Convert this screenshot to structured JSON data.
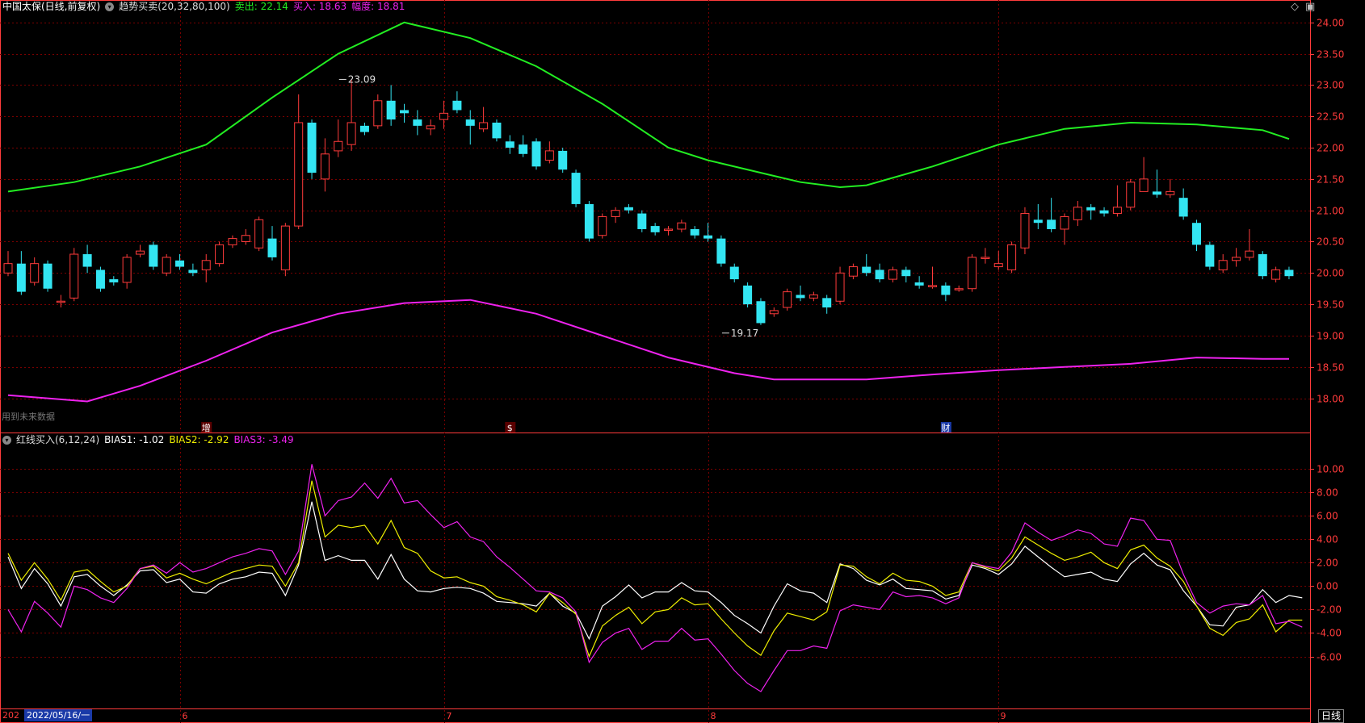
{
  "header": {
    "stock": "中国太保(日线,前复权)",
    "indicator": "趋势买卖(20,32,80,100)",
    "sell_label": "卖出: 22.14",
    "buy_label": "买入: 18.63",
    "range_label": "幅度: 18.81"
  },
  "sub_header": {
    "indicator": "红线买入(6,12,24)",
    "bias1": "BIAS1: -1.02",
    "bias2": "BIAS2: -2.92",
    "bias3": "BIAS3: -3.49"
  },
  "no_data_label": "用到未来数据",
  "period_label": "日线",
  "date_box": "2022/05/16/一",
  "date_prefix": "202",
  "colors": {
    "up": "#ff3b3b",
    "down": "#33e5f2",
    "sell": "#22ee22",
    "buy": "#ee22ee",
    "bias1": "#ffffff",
    "bias2": "#eeee00",
    "bias3": "#ee22ee",
    "grid": "#7a0000",
    "axis": "#ff3b3b"
  },
  "chart_data": [
    {
      "type": "candlestick",
      "ylim": [
        17.75,
        24.1
      ],
      "yticks": [
        "24.00",
        "23.50",
        "23.00",
        "22.50",
        "22.00",
        "21.50",
        "21.00",
        "20.50",
        "20.00",
        "19.50",
        "19.00",
        "18.50",
        "18.00"
      ],
      "ytick_values": [
        24.0,
        23.5,
        23.0,
        22.5,
        22.0,
        21.5,
        21.0,
        20.5,
        20.0,
        19.5,
        19.0,
        18.5,
        18.0
      ],
      "month_ticks": [
        {
          "label": "6",
          "index": 13
        },
        {
          "label": "7",
          "index": 33
        },
        {
          "label": "8",
          "index": 53
        },
        {
          "label": "9",
          "index": 75
        }
      ],
      "event_markers": [
        {
          "label": "增",
          "index": 15
        },
        {
          "label": "$",
          "index": 38
        },
        {
          "label": "财",
          "index": 71
        }
      ],
      "annotations": [
        {
          "label": "23.09",
          "index": 25,
          "value": 23.09
        },
        {
          "label": "19.17",
          "index": 54,
          "value": 19.17
        }
      ],
      "candles": [
        [
          20.0,
          20.15,
          20.35,
          19.95
        ],
        [
          20.15,
          19.7,
          20.35,
          19.65
        ],
        [
          19.85,
          20.15,
          20.25,
          19.8
        ],
        [
          20.15,
          19.75,
          20.2,
          19.7
        ],
        [
          19.55,
          19.55,
          19.65,
          19.45
        ],
        [
          19.6,
          20.3,
          20.4,
          19.55
        ],
        [
          20.3,
          20.1,
          20.45,
          20.0
        ],
        [
          20.05,
          19.75,
          20.1,
          19.7
        ],
        [
          19.9,
          19.85,
          19.95,
          19.8
        ],
        [
          19.85,
          20.25,
          20.3,
          19.75
        ],
        [
          20.3,
          20.35,
          20.45,
          20.25
        ],
        [
          20.45,
          20.1,
          20.5,
          20.05
        ],
        [
          20.0,
          20.25,
          20.3,
          19.95
        ],
        [
          20.2,
          20.1,
          20.3,
          20.05
        ],
        [
          20.05,
          20.0,
          20.15,
          19.95
        ],
        [
          20.05,
          20.2,
          20.3,
          19.85
        ],
        [
          20.15,
          20.45,
          20.5,
          20.1
        ],
        [
          20.45,
          20.55,
          20.6,
          20.4
        ],
        [
          20.5,
          20.6,
          20.7,
          20.45
        ],
        [
          20.4,
          20.85,
          20.9,
          20.35
        ],
        [
          20.55,
          20.25,
          20.75,
          20.2
        ],
        [
          20.05,
          20.75,
          20.8,
          19.95
        ],
        [
          20.75,
          22.4,
          22.85,
          20.7
        ],
        [
          22.4,
          21.6,
          22.45,
          21.5
        ],
        [
          21.5,
          21.9,
          22.15,
          21.3
        ],
        [
          21.95,
          22.1,
          22.45,
          21.85
        ],
        [
          22.05,
          22.4,
          23.09,
          21.95
        ],
        [
          22.35,
          22.25,
          22.4,
          22.2
        ],
        [
          22.35,
          22.75,
          22.85,
          22.3
        ],
        [
          22.75,
          22.45,
          23.0,
          22.35
        ],
        [
          22.6,
          22.55,
          22.7,
          22.4
        ],
        [
          22.45,
          22.35,
          22.6,
          22.2
        ],
        [
          22.3,
          22.35,
          22.45,
          22.2
        ],
        [
          22.45,
          22.55,
          22.75,
          22.3
        ],
        [
          22.75,
          22.6,
          22.9,
          22.55
        ],
        [
          22.45,
          22.35,
          22.6,
          22.05
        ],
        [
          22.3,
          22.4,
          22.65,
          22.25
        ],
        [
          22.4,
          22.15,
          22.45,
          22.1
        ],
        [
          22.1,
          22.0,
          22.2,
          21.9
        ],
        [
          22.05,
          21.9,
          22.2,
          21.85
        ],
        [
          22.1,
          21.7,
          22.15,
          21.65
        ],
        [
          21.8,
          21.95,
          22.1,
          21.75
        ],
        [
          21.95,
          21.65,
          22.0,
          21.6
        ],
        [
          21.6,
          21.1,
          21.65,
          21.05
        ],
        [
          21.1,
          20.55,
          21.15,
          20.5
        ],
        [
          20.6,
          20.9,
          20.95,
          20.55
        ],
        [
          20.9,
          21.0,
          21.05,
          20.8
        ],
        [
          21.05,
          21.0,
          21.1,
          20.95
        ],
        [
          20.95,
          20.7,
          21.0,
          20.65
        ],
        [
          20.75,
          20.65,
          20.8,
          20.6
        ],
        [
          20.7,
          20.7,
          20.75,
          20.6
        ],
        [
          20.7,
          20.8,
          20.85,
          20.65
        ],
        [
          20.7,
          20.6,
          20.75,
          20.55
        ],
        [
          20.6,
          20.55,
          20.8,
          20.5
        ],
        [
          20.55,
          20.15,
          20.6,
          20.1
        ],
        [
          20.1,
          19.9,
          20.15,
          19.85
        ],
        [
          19.8,
          19.5,
          19.85,
          19.45
        ],
        [
          19.55,
          19.2,
          19.6,
          19.17
        ],
        [
          19.35,
          19.4,
          19.45,
          19.3
        ],
        [
          19.45,
          19.7,
          19.75,
          19.4
        ],
        [
          19.65,
          19.6,
          19.8,
          19.55
        ],
        [
          19.6,
          19.65,
          19.7,
          19.55
        ],
        [
          19.6,
          19.45,
          19.65,
          19.35
        ],
        [
          19.55,
          20.0,
          20.1,
          19.5
        ],
        [
          19.95,
          20.1,
          20.15,
          19.9
        ],
        [
          20.1,
          20.0,
          20.3,
          19.95
        ],
        [
          20.05,
          19.9,
          20.15,
          19.85
        ],
        [
          19.9,
          20.05,
          20.1,
          19.85
        ],
        [
          20.05,
          19.95,
          20.1,
          19.85
        ],
        [
          19.85,
          19.8,
          19.95,
          19.75
        ],
        [
          19.8,
          19.8,
          20.1,
          19.75
        ],
        [
          19.8,
          19.65,
          19.85,
          19.55
        ],
        [
          19.75,
          19.75,
          19.8,
          19.7
        ],
        [
          19.75,
          20.25,
          20.3,
          19.7
        ],
        [
          20.25,
          20.25,
          20.4,
          20.15
        ],
        [
          20.1,
          20.15,
          20.35,
          20.05
        ],
        [
          20.05,
          20.45,
          20.5,
          20.0
        ],
        [
          20.4,
          20.95,
          21.05,
          20.3
        ],
        [
          20.85,
          20.8,
          21.1,
          20.7
        ],
        [
          20.85,
          20.7,
          21.2,
          20.65
        ],
        [
          20.7,
          20.9,
          20.95,
          20.45
        ],
        [
          20.85,
          21.05,
          21.15,
          20.75
        ],
        [
          21.05,
          21.0,
          21.1,
          20.85
        ],
        [
          21.0,
          20.95,
          21.05,
          20.9
        ],
        [
          20.95,
          21.05,
          21.4,
          20.9
        ],
        [
          21.05,
          21.45,
          21.5,
          21.0
        ],
        [
          21.3,
          21.5,
          21.85,
          21.3
        ],
        [
          21.3,
          21.25,
          21.65,
          21.2
        ],
        [
          21.25,
          21.3,
          21.5,
          21.2
        ],
        [
          21.2,
          20.9,
          21.35,
          20.85
        ],
        [
          20.8,
          20.45,
          20.85,
          20.35
        ],
        [
          20.45,
          20.1,
          20.5,
          20.05
        ],
        [
          20.05,
          20.2,
          20.3,
          20.0
        ],
        [
          20.2,
          20.25,
          20.4,
          20.1
        ],
        [
          20.25,
          20.35,
          20.7,
          20.2
        ],
        [
          20.3,
          19.95,
          20.35,
          19.9
        ],
        [
          19.9,
          20.05,
          20.1,
          19.85
        ],
        [
          20.05,
          19.95,
          20.1,
          19.9
        ]
      ],
      "sell_line": [
        [
          0,
          21.3
        ],
        [
          5,
          21.45
        ],
        [
          10,
          21.7
        ],
        [
          15,
          22.05
        ],
        [
          20,
          22.8
        ],
        [
          25,
          23.5
        ],
        [
          30,
          24.0
        ],
        [
          35,
          23.75
        ],
        [
          40,
          23.3
        ],
        [
          45,
          22.7
        ],
        [
          50,
          22.0
        ],
        [
          53,
          21.8
        ],
        [
          58,
          21.55
        ],
        [
          60,
          21.45
        ],
        [
          63,
          21.37
        ],
        [
          65,
          21.4
        ],
        [
          70,
          21.7
        ],
        [
          75,
          22.05
        ],
        [
          80,
          22.3
        ],
        [
          85,
          22.4
        ],
        [
          90,
          22.37
        ],
        [
          95,
          22.28
        ],
        [
          97,
          22.14
        ]
      ],
      "buy_line": [
        [
          0,
          18.05
        ],
        [
          3,
          18.0
        ],
        [
          6,
          17.95
        ],
        [
          10,
          18.2
        ],
        [
          15,
          18.6
        ],
        [
          20,
          19.05
        ],
        [
          25,
          19.35
        ],
        [
          30,
          19.52
        ],
        [
          35,
          19.57
        ],
        [
          40,
          19.35
        ],
        [
          45,
          19.0
        ],
        [
          50,
          18.65
        ],
        [
          55,
          18.4
        ],
        [
          58,
          18.3
        ],
        [
          65,
          18.3
        ],
        [
          70,
          18.38
        ],
        [
          75,
          18.45
        ],
        [
          80,
          18.5
        ],
        [
          85,
          18.55
        ],
        [
          90,
          18.65
        ],
        [
          95,
          18.63
        ],
        [
          97,
          18.63
        ]
      ]
    },
    {
      "type": "line",
      "ylim": [
        -9.2,
        11.8
      ],
      "yticks": [
        "10.00",
        "8.00",
        "6.00",
        "4.00",
        "2.00",
        "0.00",
        "-2.00",
        "-4.00",
        "-6.00"
      ],
      "ytick_values": [
        10,
        8,
        6,
        4,
        2,
        0,
        -2,
        -4,
        -6
      ],
      "series": [
        {
          "name": "BIAS1",
          "values": [
            2.5,
            -0.2,
            1.5,
            0.2,
            -1.7,
            0.8,
            1.0,
            0.0,
            -0.8,
            0.1,
            1.3,
            1.4,
            0.3,
            0.6,
            -0.5,
            -0.6,
            0.2,
            0.6,
            0.8,
            1.2,
            1.1,
            -0.8,
            1.8,
            7.2,
            2.2,
            2.6,
            2.2,
            2.2,
            0.6,
            2.7,
            0.6,
            -0.4,
            -0.5,
            -0.2,
            -0.1,
            -0.2,
            -0.6,
            -1.3,
            -1.4,
            -1.5,
            -1.7,
            -0.6,
            -1.7,
            -2.3,
            -4.5,
            -1.7,
            -0.9,
            0.1,
            -1.0,
            -0.5,
            -0.5,
            0.3,
            -0.4,
            -0.5,
            -1.4,
            -2.5,
            -3.2,
            -4.0,
            -1.7,
            0.2,
            -0.4,
            -0.6,
            -1.4,
            1.9,
            1.5,
            0.5,
            0.1,
            0.6,
            -0.2,
            -0.3,
            -0.4,
            -1.1,
            -0.8,
            1.8,
            1.5,
            1.0,
            1.9,
            3.4,
            2.5,
            1.6,
            0.8,
            1.0,
            1.2,
            0.6,
            0.4,
            1.9,
            2.8,
            1.8,
            1.4,
            -0.4,
            -1.7,
            -3.3,
            -3.4,
            -1.8,
            -1.6,
            -0.3,
            -1.4,
            -0.8,
            -1.0
          ]
        },
        {
          "name": "BIAS2",
          "values": [
            2.8,
            0.5,
            2.0,
            0.6,
            -1.2,
            1.2,
            1.4,
            0.4,
            -0.5,
            0.0,
            1.5,
            1.7,
            0.7,
            1.1,
            0.6,
            0.2,
            0.7,
            1.2,
            1.5,
            1.8,
            1.7,
            0.0,
            2.0,
            9.0,
            4.2,
            5.2,
            5.0,
            5.2,
            3.6,
            5.6,
            3.3,
            2.8,
            1.3,
            0.7,
            0.8,
            0.3,
            0.0,
            -0.9,
            -1.2,
            -1.6,
            -2.2,
            -0.6,
            -1.4,
            -2.4,
            -6.0,
            -3.4,
            -2.5,
            -1.8,
            -3.2,
            -2.2,
            -2.0,
            -1.0,
            -1.6,
            -1.5,
            -2.8,
            -4.0,
            -5.1,
            -5.9,
            -3.8,
            -2.3,
            -2.6,
            -2.9,
            -2.2,
            1.8,
            1.7,
            0.8,
            0.2,
            1.1,
            0.5,
            0.4,
            0.0,
            -0.8,
            -0.5,
            2.0,
            1.6,
            1.3,
            2.4,
            4.2,
            3.5,
            2.8,
            2.2,
            2.5,
            2.9,
            2.0,
            1.5,
            3.1,
            3.5,
            2.4,
            1.7,
            0.4,
            -1.7,
            -3.6,
            -4.2,
            -3.1,
            -2.8,
            -1.6,
            -3.9,
            -2.9,
            -2.9
          ]
        },
        {
          "name": "BIAS3",
          "values": [
            -2.0,
            -3.9,
            -1.3,
            -2.3,
            -3.5,
            0.0,
            -0.3,
            -1.0,
            -1.4,
            -0.2,
            1.5,
            1.8,
            1.1,
            2.0,
            1.2,
            1.5,
            2.0,
            2.5,
            2.8,
            3.2,
            3.0,
            1.0,
            3.0,
            10.4,
            6.0,
            7.3,
            7.6,
            8.8,
            7.5,
            9.2,
            7.1,
            7.3,
            6.1,
            5.0,
            5.5,
            4.2,
            3.8,
            2.5,
            1.6,
            0.6,
            -0.4,
            -0.5,
            -1.0,
            -2.2,
            -6.5,
            -4.8,
            -4.0,
            -3.6,
            -5.4,
            -4.7,
            -4.7,
            -3.6,
            -4.6,
            -4.5,
            -5.8,
            -7.2,
            -8.3,
            -9.0,
            -7.2,
            -5.5,
            -5.5,
            -5.1,
            -5.3,
            -2.1,
            -1.6,
            -1.8,
            -2.0,
            -0.5,
            -0.9,
            -0.8,
            -1.0,
            -1.5,
            -1.0,
            2.0,
            1.7,
            1.5,
            2.9,
            5.4,
            4.6,
            3.9,
            4.3,
            4.8,
            4.5,
            3.6,
            3.4,
            5.8,
            5.6,
            4.0,
            3.9,
            1.0,
            -1.4,
            -2.3,
            -1.7,
            -1.5,
            -1.6,
            -0.8,
            -3.2,
            -3.0,
            -3.5
          ]
        }
      ]
    }
  ]
}
